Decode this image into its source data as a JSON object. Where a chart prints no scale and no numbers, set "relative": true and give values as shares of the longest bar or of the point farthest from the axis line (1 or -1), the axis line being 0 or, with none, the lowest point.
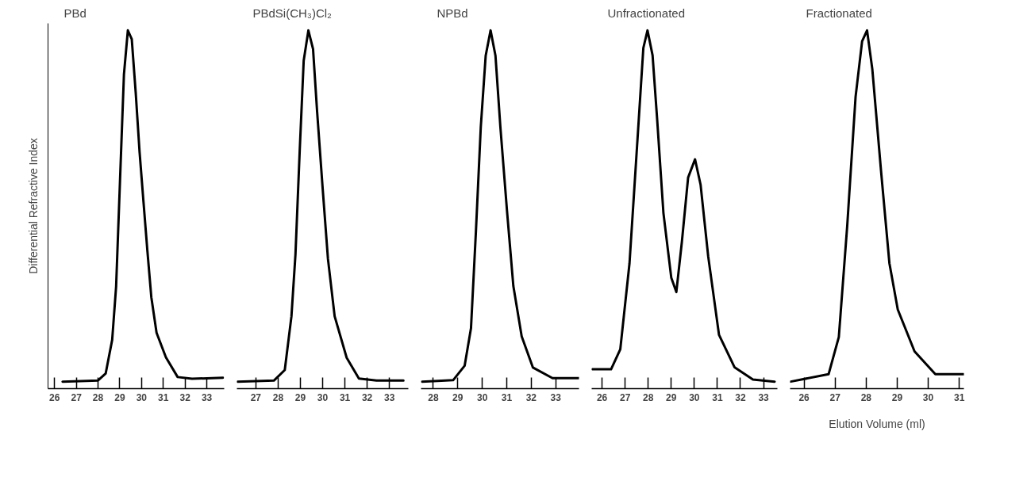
{
  "chart_data": [
    {
      "type": "line",
      "title": "PBd",
      "ylabel": "Differential Refractive Index",
      "relative": true,
      "xlim": [
        25.7,
        33.8
      ],
      "xticks": [
        26,
        27,
        28,
        29,
        30,
        31,
        32,
        33
      ],
      "x": [
        26.37,
        27.99,
        28.35,
        28.65,
        28.83,
        29.01,
        29.19,
        29.37,
        29.55,
        29.73,
        29.91,
        30.09,
        30.27,
        30.45,
        30.69,
        31.12,
        31.66,
        32.32,
        33.74
      ],
      "series": [
        {
          "color": "#000000",
          "values": [
            0.0,
            0.003,
            0.023,
            0.119,
            0.27,
            0.573,
            0.874,
            1.0,
            0.975,
            0.824,
            0.653,
            0.511,
            0.371,
            0.24,
            0.139,
            0.069,
            0.013,
            0.008,
            0.011
          ]
        }
      ]
    },
    {
      "type": "line",
      "title": "PBdSi(CH₃)Cl₂",
      "relative": true,
      "xlim": [
        26.15,
        33.85
      ],
      "xticks": [
        27,
        28,
        29,
        30,
        31,
        32,
        33
      ],
      "x": [
        26.18,
        27.81,
        28.3,
        28.6,
        28.78,
        28.97,
        29.15,
        29.36,
        29.57,
        29.75,
        29.99,
        30.24,
        30.54,
        31.08,
        31.63,
        32.42,
        33.63
      ],
      "series": [
        {
          "color": "#000000",
          "values": [
            0.0,
            0.003,
            0.033,
            0.186,
            0.362,
            0.656,
            0.914,
            1.0,
            0.947,
            0.771,
            0.56,
            0.349,
            0.186,
            0.068,
            0.009,
            0.003,
            0.003
          ]
        }
      ]
    },
    {
      "type": "line",
      "title": "NPBd",
      "relative": true,
      "xlim": [
        27.5,
        33.95
      ],
      "xticks": [
        28,
        29,
        30,
        31,
        32,
        33
      ],
      "x": [
        27.54,
        28.81,
        29.28,
        29.54,
        29.74,
        29.94,
        30.14,
        30.34,
        30.54,
        30.74,
        31.01,
        31.27,
        31.61,
        32.07,
        32.87,
        33.94
      ],
      "series": [
        {
          "color": "#000000",
          "values": [
            0.0,
            0.004,
            0.045,
            0.152,
            0.426,
            0.725,
            0.928,
            1.0,
            0.928,
            0.725,
            0.487,
            0.272,
            0.129,
            0.04,
            0.01,
            0.01
          ]
        }
      ]
    },
    {
      "type": "line",
      "title": "Unfractionated",
      "relative": true,
      "xlim": [
        25.55,
        33.6
      ],
      "xticks": [
        26,
        27,
        28,
        29,
        30,
        31,
        32,
        33
      ],
      "x": [
        25.58,
        26.39,
        26.79,
        27.19,
        27.59,
        27.79,
        27.97,
        28.19,
        28.39,
        28.66,
        29.0,
        29.22,
        29.46,
        29.73,
        30.03,
        30.27,
        30.6,
        31.07,
        31.74,
        32.54,
        33.48
      ],
      "series": [
        {
          "color": "#000000",
          "values": [
            0.035,
            0.035,
            0.092,
            0.337,
            0.745,
            0.95,
            1.0,
            0.929,
            0.745,
            0.48,
            0.296,
            0.255,
            0.398,
            0.581,
            0.633,
            0.561,
            0.357,
            0.133,
            0.041,
            0.006,
            0.0
          ]
        }
      ]
    },
    {
      "type": "line",
      "title": "Fractionated",
      "xlabel": "Elution Volume (ml)",
      "relative": true,
      "xlim": [
        25.55,
        31.15
      ],
      "xticks": [
        26,
        27,
        28,
        29,
        30,
        31
      ],
      "x": [
        25.57,
        26.79,
        27.12,
        27.39,
        27.66,
        27.87,
        28.03,
        28.2,
        28.48,
        28.75,
        29.02,
        29.56,
        30.23,
        31.14
      ],
      "series": [
        {
          "color": "#000000",
          "values": [
            0.0,
            0.021,
            0.127,
            0.443,
            0.811,
            0.969,
            1.0,
            0.889,
            0.6,
            0.337,
            0.205,
            0.086,
            0.021,
            0.021
          ]
        }
      ]
    }
  ]
}
